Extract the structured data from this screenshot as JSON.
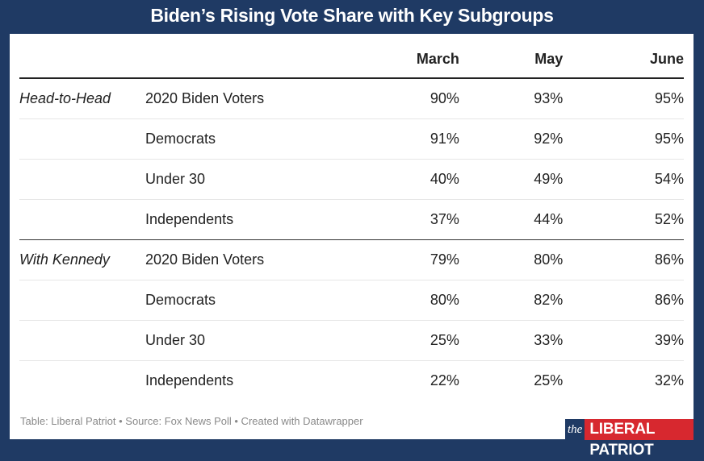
{
  "title": "Biden’s Rising Vote Share with Key Subgroups",
  "footer": "Table: Liberal Patriot • Source: Fox News Poll • Created with Datawrapper",
  "logo": {
    "the": "the",
    "name": "LIBERAL PATRIOT"
  },
  "chart_data": {
    "type": "table",
    "title": "Biden’s Rising Vote Share with Key Subgroups",
    "columns": [
      "",
      "",
      "March",
      "May",
      "June"
    ],
    "rows": [
      {
        "group": "Head-to-Head",
        "subgroup": "2020 Biden Voters",
        "values": [
          "90%",
          "93%",
          "95%"
        ]
      },
      {
        "group": "",
        "subgroup": "Democrats",
        "values": [
          "91%",
          "92%",
          "95%"
        ]
      },
      {
        "group": "",
        "subgroup": "Under 30",
        "values": [
          "40%",
          "49%",
          "54%"
        ]
      },
      {
        "group": "",
        "subgroup": "Independents",
        "values": [
          "37%",
          "44%",
          "52%"
        ]
      },
      {
        "group": "With Kennedy",
        "subgroup": "2020 Biden Voters",
        "values": [
          "79%",
          "80%",
          "86%"
        ]
      },
      {
        "group": "",
        "subgroup": "Democrats",
        "values": [
          "80%",
          "82%",
          "86%"
        ]
      },
      {
        "group": "",
        "subgroup": "Under 30",
        "values": [
          "25%",
          "33%",
          "39%"
        ]
      },
      {
        "group": "",
        "subgroup": "Independents",
        "values": [
          "22%",
          "25%",
          "32%"
        ]
      }
    ]
  }
}
